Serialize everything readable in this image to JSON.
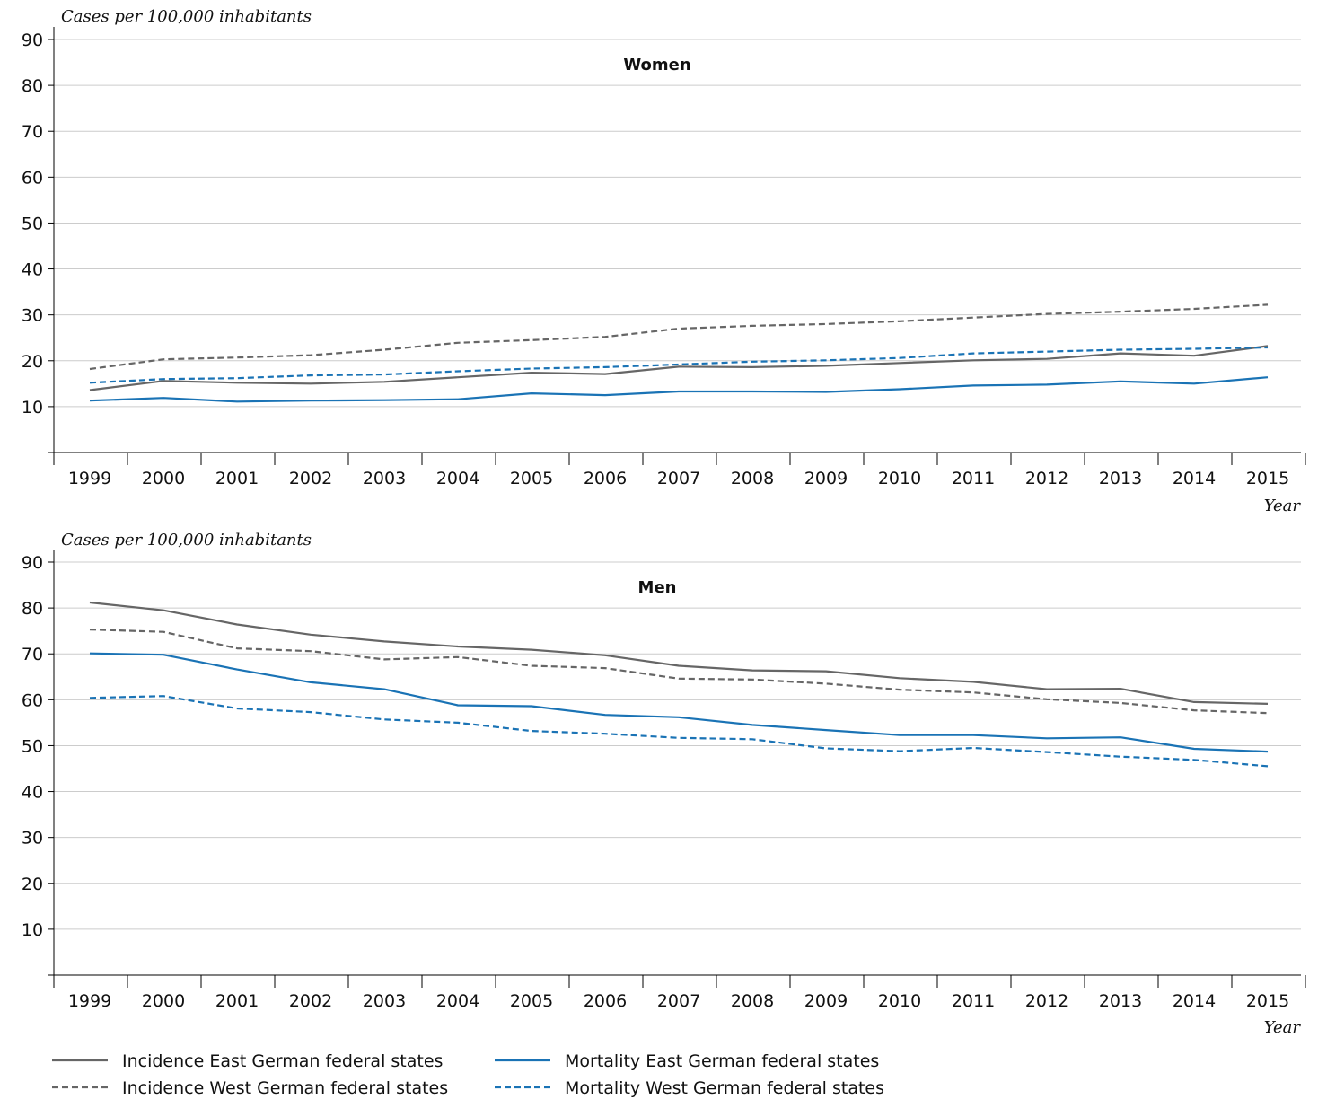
{
  "colors": {
    "incidence": "#666666",
    "mortality": "#1a73b5",
    "grid": "#cccccc",
    "axis": "#000000"
  },
  "legend": {
    "items": [
      {
        "label": "Incidence East German federal states",
        "color": "#666666",
        "dash": "solid"
      },
      {
        "label": "Mortality East German federal states",
        "color": "#1a73b5",
        "dash": "solid"
      },
      {
        "label": "Incidence West German federal states",
        "color": "#666666",
        "dash": "dashed"
      },
      {
        "label": "Mortality West German federal states",
        "color": "#1a73b5",
        "dash": "dashed"
      }
    ]
  },
  "chart_data": [
    {
      "type": "line",
      "title": "Women",
      "ylabel": "Cases per 100,000 inhabitants",
      "xlabel": "Year",
      "ylim": [
        0,
        90
      ],
      "yticks": [
        10,
        20,
        30,
        40,
        50,
        60,
        70,
        80,
        90
      ],
      "grid": true,
      "categories": [
        "1999",
        "2000",
        "2001",
        "2002",
        "2003",
        "2004",
        "2005",
        "2006",
        "2007",
        "2008",
        "2009",
        "2010",
        "2011",
        "2012",
        "2013",
        "2014",
        "2015"
      ],
      "series": [
        {
          "name": "Incidence East German federal states",
          "style": "solid",
          "color": "#666666",
          "values": [
            13.6,
            15.6,
            15.2,
            15.0,
            15.4,
            16.4,
            17.4,
            17.1,
            18.7,
            18.6,
            18.9,
            19.5,
            20.1,
            20.4,
            21.6,
            21.1,
            23.2
          ]
        },
        {
          "name": "Incidence West German federal states",
          "style": "dashed",
          "color": "#666666",
          "values": [
            18.2,
            20.3,
            20.7,
            21.2,
            22.4,
            23.9,
            24.5,
            25.2,
            27.0,
            27.6,
            28.0,
            28.6,
            29.4,
            30.2,
            30.7,
            31.3,
            32.2
          ]
        },
        {
          "name": "Mortality East German federal states",
          "style": "solid",
          "color": "#1a73b5",
          "values": [
            11.3,
            11.9,
            11.1,
            11.3,
            11.4,
            11.6,
            12.9,
            12.5,
            13.3,
            13.3,
            13.2,
            13.8,
            14.6,
            14.8,
            15.5,
            15.0,
            16.4
          ]
        },
        {
          "name": "Mortality West German federal states",
          "style": "dashed",
          "color": "#1a73b5",
          "values": [
            15.2,
            16.0,
            16.2,
            16.8,
            17.0,
            17.7,
            18.3,
            18.6,
            19.2,
            19.8,
            20.1,
            20.6,
            21.6,
            22.0,
            22.4,
            22.6,
            22.9
          ]
        }
      ]
    },
    {
      "type": "line",
      "title": "Men",
      "ylabel": "Cases per 100,000 inhabitants",
      "xlabel": "Year",
      "ylim": [
        0,
        90
      ],
      "yticks": [
        10,
        20,
        30,
        40,
        50,
        60,
        70,
        80,
        90
      ],
      "grid": true,
      "categories": [
        "1999",
        "2000",
        "2001",
        "2002",
        "2003",
        "2004",
        "2005",
        "2006",
        "2007",
        "2008",
        "2009",
        "2010",
        "2011",
        "2012",
        "2013",
        "2014",
        "2015"
      ],
      "series": [
        {
          "name": "Incidence East German federal states",
          "style": "solid",
          "color": "#666666",
          "values": [
            81.2,
            79.5,
            76.4,
            74.2,
            72.7,
            71.6,
            70.9,
            69.7,
            67.4,
            66.4,
            66.2,
            64.7,
            63.9,
            62.3,
            62.4,
            59.5,
            59.1
          ]
        },
        {
          "name": "Incidence West German federal states",
          "style": "dashed",
          "color": "#666666",
          "values": [
            75.3,
            74.8,
            71.2,
            70.6,
            68.8,
            69.3,
            67.4,
            66.9,
            64.6,
            64.4,
            63.5,
            62.2,
            61.6,
            60.1,
            59.3,
            57.7,
            57.1
          ]
        },
        {
          "name": "Mortality East German federal states",
          "style": "solid",
          "color": "#1a73b5",
          "values": [
            70.1,
            69.8,
            66.6,
            63.8,
            62.3,
            58.8,
            58.6,
            56.7,
            56.2,
            54.5,
            53.4,
            52.3,
            52.3,
            51.6,
            51.8,
            49.3,
            48.7
          ]
        },
        {
          "name": "Mortality West German federal states",
          "style": "dashed",
          "color": "#1a73b5",
          "values": [
            60.4,
            60.8,
            58.1,
            57.3,
            55.7,
            55.0,
            53.2,
            52.6,
            51.7,
            51.4,
            49.4,
            48.8,
            49.5,
            48.6,
            47.6,
            46.9,
            45.5
          ]
        }
      ]
    }
  ]
}
